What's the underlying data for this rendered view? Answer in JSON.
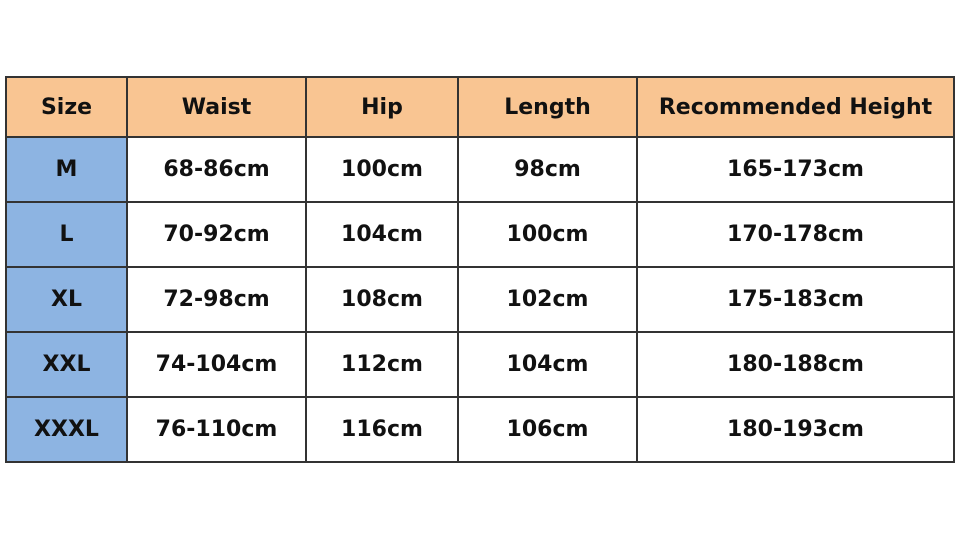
{
  "headers": [
    "Size",
    "Waist",
    "Hip",
    "Length",
    "Recommended Height"
  ],
  "rows": [
    [
      "M",
      "68-86cm",
      "100cm",
      "98cm",
      "165-173cm"
    ],
    [
      "L",
      "70-92cm",
      "104cm",
      "100cm",
      "170-178cm"
    ],
    [
      "XL",
      "72-98cm",
      "108cm",
      "102cm",
      "175-183cm"
    ],
    [
      "XXL",
      "74-104cm",
      "112cm",
      "104cm",
      "180-188cm"
    ],
    [
      "XXXL",
      "76-110cm",
      "116cm",
      "106cm",
      "180-193cm"
    ]
  ],
  "colors": {
    "header_bg": "#f9c592",
    "size_col_bg": "#8db4e2"
  }
}
